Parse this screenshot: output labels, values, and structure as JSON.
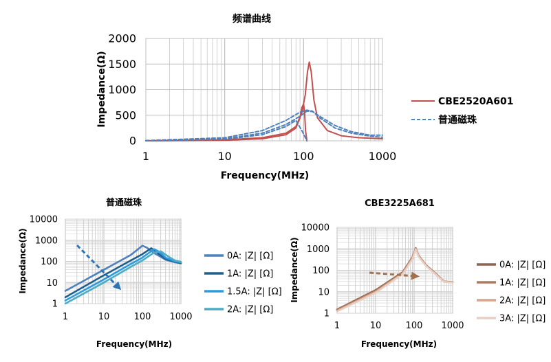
{
  "chart_data": [
    {
      "type": "line",
      "title": "频谱曲线",
      "xlabel": "Frequency(MHz)",
      "ylabel": "Impedance(Ω)",
      "xscale": "log",
      "xlim": [
        1,
        1000
      ],
      "ylim": [
        0,
        2000
      ],
      "x_ticks": [
        "1",
        "10",
        "100",
        "1000"
      ],
      "y_ticks": [
        "0",
        "500",
        "1000",
        "1500",
        "2000"
      ],
      "legend_position": "right",
      "series": [
        {
          "name": "CBE2520A601",
          "style": "solid",
          "color": "#c0504d",
          "x": [
            1,
            10,
            30,
            60,
            80,
            95,
            105,
            112,
            118,
            125,
            135,
            150,
            200,
            300,
            500,
            1000
          ],
          "y": [
            0,
            20,
            60,
            150,
            280,
            550,
            900,
            1350,
            1540,
            1350,
            800,
            450,
            200,
            100,
            60,
            40
          ]
        },
        {
          "name": "CBE2520A601",
          "style": "solid",
          "color": "#c0504d",
          "x": [
            1,
            10,
            30,
            60,
            80,
            90,
            95,
            100,
            103,
            106,
            110
          ],
          "y": [
            0,
            10,
            40,
            120,
            250,
            450,
            650,
            720,
            550,
            200,
            0
          ]
        },
        {
          "name": "普通磁珠",
          "style": "dashed",
          "color": "#4f81bd",
          "x": [
            1,
            10,
            30,
            60,
            90,
            110,
            130,
            160,
            250,
            400,
            700,
            1000
          ],
          "y": [
            5,
            60,
            200,
            400,
            560,
            600,
            580,
            450,
            250,
            150,
            90,
            70
          ]
        },
        {
          "name": "普通磁珠",
          "style": "dashed",
          "color": "#4f81bd",
          "x": [
            1,
            10,
            30,
            60,
            90,
            110,
            130,
            160,
            250,
            400,
            700,
            1000
          ],
          "y": [
            3,
            40,
            150,
            320,
            480,
            580,
            570,
            480,
            300,
            180,
            110,
            110
          ]
        },
        {
          "name": "普通磁珠",
          "style": "dashed",
          "color": "#4f81bd",
          "x": [
            1,
            10,
            30,
            60,
            80,
            95,
            110
          ],
          "y": [
            2,
            30,
            120,
            280,
            400,
            200,
            0
          ]
        }
      ],
      "legend": [
        "CBE2520A601",
        "普通磁珠"
      ]
    },
    {
      "type": "line",
      "title": "普通磁珠",
      "xlabel": "Frequency(MHz)",
      "ylabel": "Impedance(Ω)",
      "xscale": "log",
      "yscale": "log",
      "xlim": [
        1,
        1000
      ],
      "ylim": [
        1,
        10000
      ],
      "x_ticks": [
        "1",
        "10",
        "100",
        "1000"
      ],
      "y_ticks": [
        "1",
        "10",
        "100",
        "1000",
        "10000"
      ],
      "legend_position": "right",
      "annotation": "dashed arrow pointing down-right (increasing DC current)",
      "series": [
        {
          "name": "0A: |Z| [Ω]",
          "color": "#4f81bd",
          "x": [
            1,
            10,
            50,
            100,
            130,
            200,
            400,
            700,
            1000
          ],
          "y": [
            4,
            40,
            200,
            550,
            450,
            250,
            120,
            90,
            80
          ]
        },
        {
          "name": "1A: |Z| [Ω]",
          "color": "#1f5f8b",
          "x": [
            1,
            10,
            50,
            100,
            170,
            250,
            400,
            700,
            1000
          ],
          "y": [
            2,
            22,
            110,
            220,
            420,
            250,
            130,
            95,
            85
          ]
        },
        {
          "name": "1.5A: |Z| [Ω]",
          "color": "#2e9be0",
          "x": [
            1,
            10,
            50,
            100,
            200,
            280,
            400,
            700,
            1000
          ],
          "y": [
            1.4,
            14,
            75,
            150,
            380,
            280,
            150,
            100,
            90
          ]
        },
        {
          "name": "2A: |Z| [Ω]",
          "color": "#4bacc6",
          "x": [
            1,
            10,
            50,
            100,
            200,
            300,
            450,
            700,
            1000
          ],
          "y": [
            1,
            10,
            55,
            110,
            260,
            300,
            180,
            110,
            95
          ]
        }
      ]
    },
    {
      "type": "line",
      "title": "CBE3225A681",
      "xlabel": "Frequency(MHz)",
      "ylabel": "Impedance(Ω)",
      "xscale": "log",
      "yscale": "log",
      "xlim": [
        1,
        1000
      ],
      "ylim": [
        1,
        10000
      ],
      "x_ticks": [
        "1",
        "10",
        "100",
        "1000"
      ],
      "y_ticks": [
        "1",
        "10",
        "100",
        "1000",
        "10000"
      ],
      "legend_position": "right",
      "annotation": "dashed arrow pointing right",
      "series": [
        {
          "name": "0A: |Z| [Ω]",
          "color": "#8c6450",
          "x": [
            1,
            10,
            50,
            90,
            110,
            130,
            200,
            400,
            600,
            1000
          ],
          "y": [
            1.5,
            12,
            80,
            400,
            1100,
            500,
            180,
            60,
            30,
            28
          ]
        },
        {
          "name": "1A: |Z| [Ω]",
          "color": "#b07a62",
          "x": [
            1,
            10,
            50,
            90,
            110,
            130,
            200,
            400,
            600,
            1000
          ],
          "y": [
            1.4,
            11,
            75,
            380,
            1050,
            480,
            175,
            58,
            30,
            28
          ]
        },
        {
          "name": "2A: |Z| [Ω]",
          "color": "#d4a48c",
          "x": [
            1,
            10,
            50,
            90,
            110,
            130,
            200,
            400,
            600,
            1000
          ],
          "y": [
            1.3,
            10,
            70,
            350,
            1000,
            460,
            170,
            56,
            29,
            27
          ]
        },
        {
          "name": "3A: |Z| [Ω]",
          "color": "#e8cfc2",
          "x": [
            1,
            10,
            50,
            90,
            110,
            130,
            200,
            400,
            600,
            1000
          ],
          "y": [
            1.2,
            9,
            65,
            320,
            950,
            440,
            165,
            55,
            29,
            27
          ]
        }
      ]
    }
  ]
}
